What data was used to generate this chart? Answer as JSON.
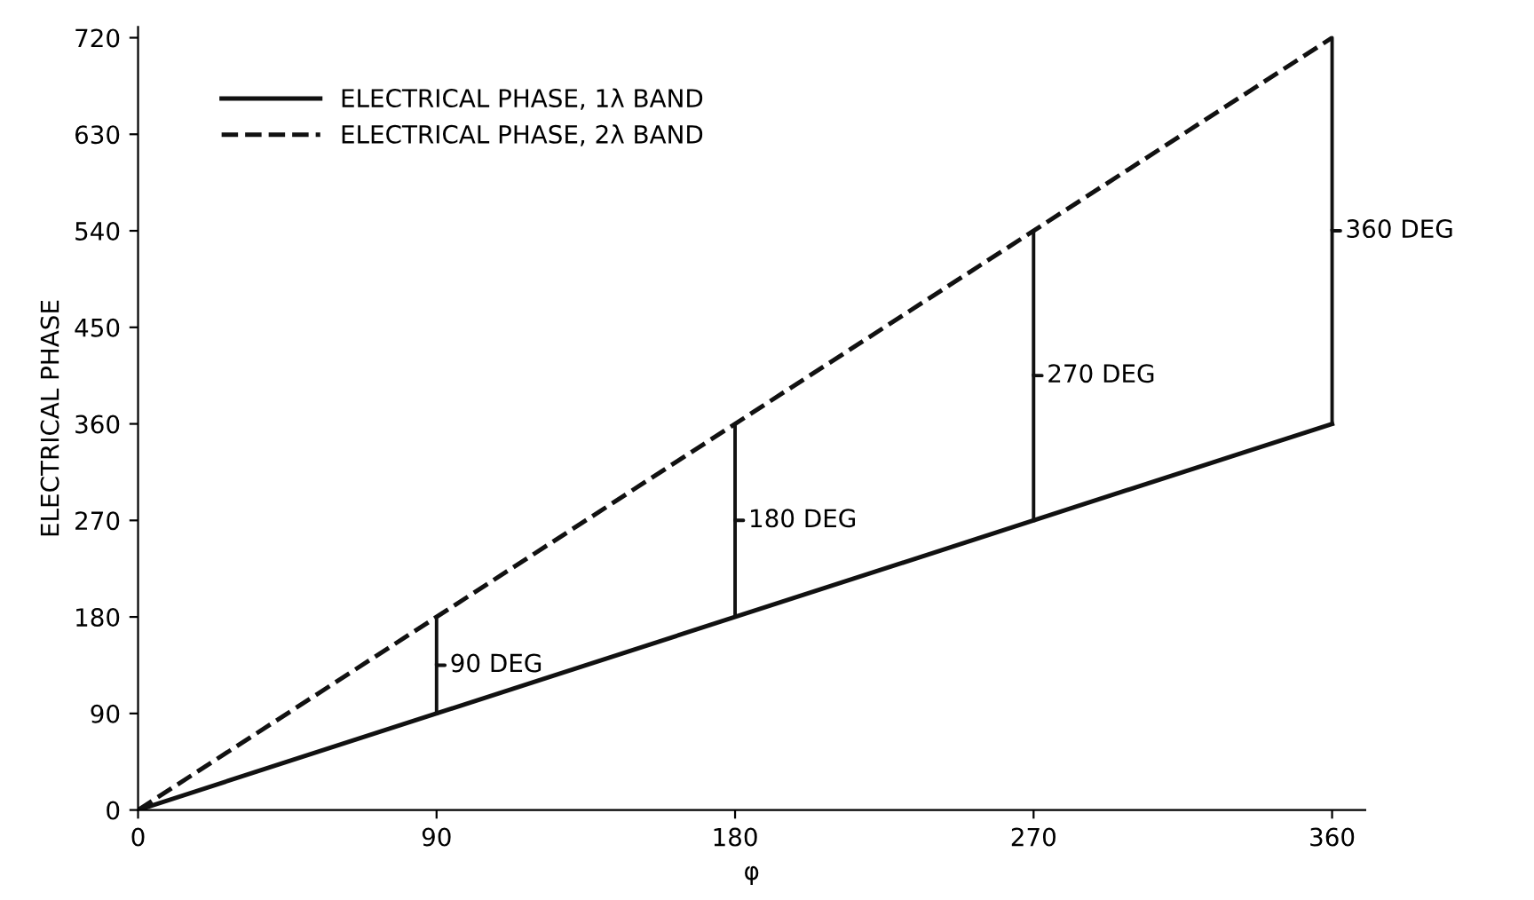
{
  "chart_data": {
    "type": "line",
    "xlabel": "φ",
    "ylabel": "ELECTRICAL PHASE",
    "x": [
      0,
      360
    ],
    "xlim": [
      0,
      370
    ],
    "ylim": [
      0,
      730
    ],
    "xticks": [
      0,
      90,
      180,
      270,
      360
    ],
    "yticks": [
      0,
      90,
      180,
      270,
      360,
      450,
      540,
      630,
      720
    ],
    "series": [
      {
        "name": "ELECTRICAL PHASE, 1λ BAND",
        "color": "#111111",
        "values": [
          0,
          360
        ],
        "line_style": "solid"
      },
      {
        "name": "ELECTRICAL PHASE, 2λ BAND",
        "color": "#111111",
        "values": [
          0,
          720
        ],
        "line_style": "dashed"
      }
    ],
    "annotations": [
      {
        "text": "90 DEG",
        "x": 90,
        "y": 180
      },
      {
        "text": "180 DEG",
        "x": 180,
        "y": 360
      },
      {
        "text": "270 DEG",
        "x": 270,
        "y": 540
      },
      {
        "text": "360 DEG",
        "x": 360,
        "y": 720
      }
    ],
    "legend": "top left",
    "grid": false
  }
}
